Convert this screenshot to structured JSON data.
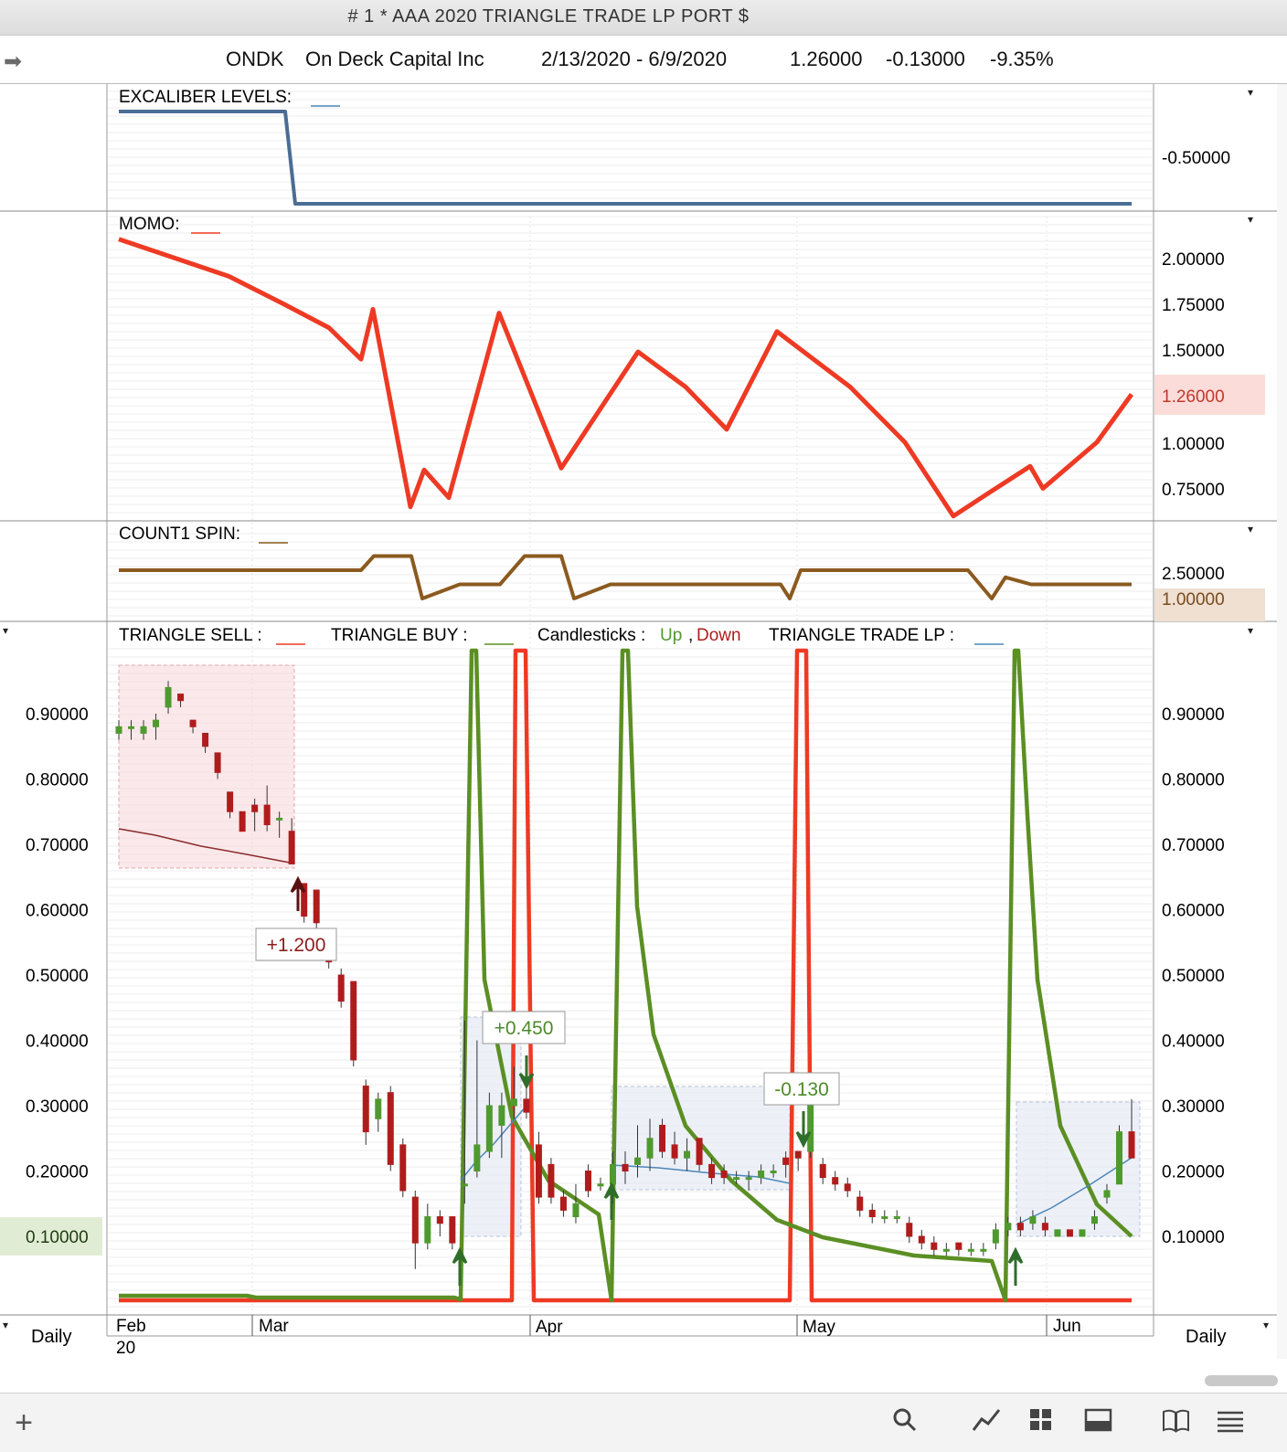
{
  "window": {
    "title": "# 1 * AAA 2020 TRIANGLE TRADE LP  PORT $"
  },
  "header": {
    "symbol": "ONDK",
    "company": "On Deck Capital Inc",
    "date_range": "2/13/2020 - 6/9/2020",
    "last": "1.26000",
    "change": "-0.13000",
    "change_pct": "-9.35%"
  },
  "colors": {
    "up": "#4f9a2e",
    "down": "#b01c1c",
    "triangle_sell": "#ee3a24",
    "triangle_buy": "#5b8f24",
    "excaliber": "#4a6d95",
    "count1": "#8b5a1f",
    "momo": "#ee3a24",
    "trade_lp": "#4d87b8"
  },
  "panels": {
    "excaliber": {
      "label": "EXCALIBER LEVELS:",
      "right_tick": "-0.50000"
    },
    "momo": {
      "label": "MOMO:",
      "ticks": [
        "2.00000",
        "1.75000",
        "1.50000",
        "1.00000",
        "0.75000"
      ],
      "highlight": "1.26000"
    },
    "count1": {
      "label": "COUNT1 SPIN:",
      "ticks": [
        "2.50000"
      ],
      "highlight": "1.00000"
    },
    "main": {
      "legend_sell": "TRIANGLE SELL :",
      "legend_buy": "TRIANGLE BUY :",
      "legend_candles": "Candlesticks :",
      "legend_up": "Up",
      "legend_sep": ",",
      "legend_down": "Down",
      "legend_lp": "TRIANGLE TRADE LP :",
      "ticks": [
        "0.90000",
        "0.80000",
        "0.70000",
        "0.60000",
        "0.50000",
        "0.40000",
        "0.30000",
        "0.20000",
        "0.10000"
      ],
      "left_highlight": "0.10000",
      "annotations": [
        "+1.200",
        "+0.450",
        "-0.130"
      ]
    }
  },
  "xaxis": {
    "labels": [
      "Feb",
      "Mar",
      "Apr",
      "May",
      "Jun"
    ],
    "year": "20",
    "period_left": "Daily",
    "period_right": "Daily"
  },
  "toolbar": {
    "add": "+",
    "search": "search-icon",
    "line": "line-chart-icon",
    "grid": "grid-icon",
    "layout": "layout-icon",
    "book": "book-icon",
    "menu": "menu-icon"
  },
  "chart_data": [
    {
      "type": "line",
      "title": "EXCALIBER LEVELS",
      "x": [
        "Feb",
        "Mar",
        "Apr",
        "May",
        "Jun"
      ],
      "series": [
        {
          "name": "EXCALIBER LEVELS",
          "values": [
            -0.4,
            -0.4,
            -0.6,
            -0.6,
            -0.6
          ]
        }
      ]
    },
    {
      "type": "line",
      "title": "MOMO",
      "ylim": [
        0.6,
        2.2
      ],
      "series": [
        {
          "name": "MOMO",
          "values": [
            2.1,
            2.0,
            1.9,
            1.75,
            1.62,
            1.45,
            1.72,
            0.65,
            0.85,
            0.7,
            1.7,
            0.86,
            1.49,
            1.3,
            1.07,
            1.6,
            1.3,
            1.0,
            0.6,
            0.72,
            0.87,
            0.75,
            1.0,
            1.26
          ]
        }
      ]
    },
    {
      "type": "line",
      "title": "COUNT1 SPIN",
      "series": [
        {
          "name": "COUNT1 SPIN",
          "values": [
            2.0,
            2.0,
            2.0,
            3.0,
            3.0,
            0.0,
            1.0,
            1.0,
            3.0,
            3.0,
            0.0,
            1.0,
            1.0,
            1.0,
            0.0,
            2.0,
            2.0,
            2.0,
            2.0,
            0.0,
            1.5,
            1.0,
            1.0,
            1.0
          ]
        }
      ]
    },
    {
      "type": "candlestick",
      "title": "TRIANGLE TRADE LP",
      "ylim": [
        0.0,
        1.0
      ],
      "candles": [
        {
          "o": 0.87,
          "h": 0.89,
          "l": 0.86,
          "c": 0.88
        },
        {
          "o": 0.88,
          "h": 0.89,
          "l": 0.86,
          "c": 0.88
        },
        {
          "o": 0.87,
          "h": 0.89,
          "l": 0.86,
          "c": 0.88
        },
        {
          "o": 0.88,
          "h": 0.9,
          "l": 0.86,
          "c": 0.89
        },
        {
          "o": 0.91,
          "h": 0.95,
          "l": 0.9,
          "c": 0.94
        },
        {
          "o": 0.93,
          "h": 0.93,
          "l": 0.91,
          "c": 0.92
        },
        {
          "o": 0.89,
          "h": 0.89,
          "l": 0.87,
          "c": 0.88
        },
        {
          "o": 0.87,
          "h": 0.87,
          "l": 0.84,
          "c": 0.85
        },
        {
          "o": 0.84,
          "h": 0.84,
          "l": 0.8,
          "c": 0.81
        },
        {
          "o": 0.78,
          "h": 0.78,
          "l": 0.74,
          "c": 0.75
        },
        {
          "o": 0.75,
          "h": 0.75,
          "l": 0.72,
          "c": 0.72
        },
        {
          "o": 0.76,
          "h": 0.77,
          "l": 0.72,
          "c": 0.75
        },
        {
          "o": 0.76,
          "h": 0.79,
          "l": 0.72,
          "c": 0.73
        },
        {
          "o": 0.74,
          "h": 0.75,
          "l": 0.71,
          "c": 0.74
        },
        {
          "o": 0.72,
          "h": 0.74,
          "l": 0.67,
          "c": 0.67
        },
        {
          "o": 0.64,
          "h": 0.64,
          "l": 0.58,
          "c": 0.59
        },
        {
          "o": 0.63,
          "h": 0.63,
          "l": 0.57,
          "c": 0.58
        },
        {
          "o": 0.54,
          "h": 0.55,
          "l": 0.51,
          "c": 0.52
        },
        {
          "o": 0.5,
          "h": 0.51,
          "l": 0.45,
          "c": 0.46
        },
        {
          "o": 0.49,
          "h": 0.49,
          "l": 0.36,
          "c": 0.37
        },
        {
          "o": 0.33,
          "h": 0.34,
          "l": 0.24,
          "c": 0.26
        },
        {
          "o": 0.28,
          "h": 0.32,
          "l": 0.26,
          "c": 0.31
        },
        {
          "o": 0.32,
          "h": 0.33,
          "l": 0.2,
          "c": 0.21
        },
        {
          "o": 0.24,
          "h": 0.25,
          "l": 0.16,
          "c": 0.17
        },
        {
          "o": 0.16,
          "h": 0.17,
          "l": 0.05,
          "c": 0.09
        },
        {
          "o": 0.09,
          "h": 0.15,
          "l": 0.08,
          "c": 0.13
        },
        {
          "o": 0.13,
          "h": 0.14,
          "l": 0.1,
          "c": 0.12
        },
        {
          "o": 0.13,
          "h": 0.13,
          "l": 0.08,
          "c": 0.09
        },
        {
          "o": 0.18,
          "h": 0.43,
          "l": 0.15,
          "c": 0.18
        },
        {
          "o": 0.2,
          "h": 0.4,
          "l": 0.19,
          "c": 0.24
        },
        {
          "o": 0.23,
          "h": 0.32,
          "l": 0.22,
          "c": 0.3
        },
        {
          "o": 0.27,
          "h": 0.32,
          "l": 0.22,
          "c": 0.3
        },
        {
          "o": 0.3,
          "h": 0.36,
          "l": 0.28,
          "c": 0.31
        },
        {
          "o": 0.31,
          "h": 0.37,
          "l": 0.28,
          "c": 0.29
        },
        {
          "o": 0.24,
          "h": 0.26,
          "l": 0.15,
          "c": 0.16
        },
        {
          "o": 0.21,
          "h": 0.22,
          "l": 0.15,
          "c": 0.16
        },
        {
          "o": 0.16,
          "h": 0.17,
          "l": 0.13,
          "c": 0.14
        },
        {
          "o": 0.13,
          "h": 0.18,
          "l": 0.12,
          "c": 0.15
        },
        {
          "o": 0.2,
          "h": 0.21,
          "l": 0.16,
          "c": 0.17
        },
        {
          "o": 0.18,
          "h": 0.19,
          "l": 0.17,
          "c": 0.18
        },
        {
          "o": 0.18,
          "h": 0.23,
          "l": 0.15,
          "c": 0.21
        },
        {
          "o": 0.21,
          "h": 0.23,
          "l": 0.18,
          "c": 0.2
        },
        {
          "o": 0.21,
          "h": 0.27,
          "l": 0.19,
          "c": 0.22
        },
        {
          "o": 0.22,
          "h": 0.28,
          "l": 0.2,
          "c": 0.25
        },
        {
          "o": 0.27,
          "h": 0.28,
          "l": 0.22,
          "c": 0.23
        },
        {
          "o": 0.24,
          "h": 0.26,
          "l": 0.21,
          "c": 0.22
        },
        {
          "o": 0.22,
          "h": 0.25,
          "l": 0.2,
          "c": 0.23
        },
        {
          "o": 0.25,
          "h": 0.25,
          "l": 0.2,
          "c": 0.21
        },
        {
          "o": 0.21,
          "h": 0.22,
          "l": 0.18,
          "c": 0.19
        },
        {
          "o": 0.2,
          "h": 0.21,
          "l": 0.18,
          "c": 0.19
        },
        {
          "o": 0.19,
          "h": 0.2,
          "l": 0.18,
          "c": 0.19
        },
        {
          "o": 0.19,
          "h": 0.2,
          "l": 0.17,
          "c": 0.19
        },
        {
          "o": 0.19,
          "h": 0.21,
          "l": 0.18,
          "c": 0.2
        },
        {
          "o": 0.2,
          "h": 0.21,
          "l": 0.19,
          "c": 0.2
        },
        {
          "o": 0.22,
          "h": 0.23,
          "l": 0.19,
          "c": 0.21
        },
        {
          "o": 0.23,
          "h": 0.23,
          "l": 0.2,
          "c": 0.22
        },
        {
          "o": 0.23,
          "h": 0.31,
          "l": 0.22,
          "c": 0.3
        },
        {
          "o": 0.21,
          "h": 0.22,
          "l": 0.18,
          "c": 0.19
        },
        {
          "o": 0.19,
          "h": 0.2,
          "l": 0.17,
          "c": 0.18
        },
        {
          "o": 0.18,
          "h": 0.19,
          "l": 0.16,
          "c": 0.17
        },
        {
          "o": 0.16,
          "h": 0.17,
          "l": 0.13,
          "c": 0.14
        },
        {
          "o": 0.14,
          "h": 0.15,
          "l": 0.12,
          "c": 0.13
        },
        {
          "o": 0.13,
          "h": 0.14,
          "l": 0.12,
          "c": 0.13
        },
        {
          "o": 0.13,
          "h": 0.14,
          "l": 0.12,
          "c": 0.13
        },
        {
          "o": 0.12,
          "h": 0.13,
          "l": 0.09,
          "c": 0.1
        },
        {
          "o": 0.1,
          "h": 0.11,
          "l": 0.08,
          "c": 0.09
        },
        {
          "o": 0.09,
          "h": 0.1,
          "l": 0.07,
          "c": 0.08
        },
        {
          "o": 0.08,
          "h": 0.09,
          "l": 0.07,
          "c": 0.08
        },
        {
          "o": 0.09,
          "h": 0.09,
          "l": 0.07,
          "c": 0.08
        },
        {
          "o": 0.08,
          "h": 0.09,
          "l": 0.07,
          "c": 0.08
        },
        {
          "o": 0.08,
          "h": 0.09,
          "l": 0.07,
          "c": 0.08
        },
        {
          "o": 0.09,
          "h": 0.12,
          "l": 0.08,
          "c": 0.11
        },
        {
          "o": 0.11,
          "h": 0.13,
          "l": 0.1,
          "c": 0.12
        },
        {
          "o": 0.12,
          "h": 0.13,
          "l": 0.1,
          "c": 0.11
        },
        {
          "o": 0.12,
          "h": 0.14,
          "l": 0.11,
          "c": 0.13
        },
        {
          "o": 0.12,
          "h": 0.13,
          "l": 0.1,
          "c": 0.11
        },
        {
          "o": 0.1,
          "h": 0.11,
          "l": 0.1,
          "c": 0.11
        },
        {
          "o": 0.11,
          "h": 0.11,
          "l": 0.1,
          "c": 0.1
        },
        {
          "o": 0.1,
          "h": 0.11,
          "l": 0.1,
          "c": 0.11
        },
        {
          "o": 0.12,
          "h": 0.14,
          "l": 0.11,
          "c": 0.13
        },
        {
          "o": 0.16,
          "h": 0.18,
          "l": 0.15,
          "c": 0.17
        },
        {
          "o": 0.18,
          "h": 0.27,
          "l": 0.18,
          "c": 0.26
        },
        {
          "o": 0.26,
          "h": 0.31,
          "l": 0.22,
          "c": 0.22
        }
      ],
      "series": [
        {
          "name": "TRIANGLE SELL",
          "values": [
            0.0,
            0.0,
            0.0,
            0.0,
            1.0,
            0.0,
            0.0,
            0.0,
            1.0,
            0.0,
            0.0,
            0.0
          ]
        },
        {
          "name": "TRIANGLE BUY",
          "values": [
            0.01,
            0.01,
            0.01,
            1.0,
            0.3,
            0.1,
            1.0,
            0.2,
            0.07,
            0.04,
            1.0,
            0.1
          ]
        }
      ]
    }
  ]
}
